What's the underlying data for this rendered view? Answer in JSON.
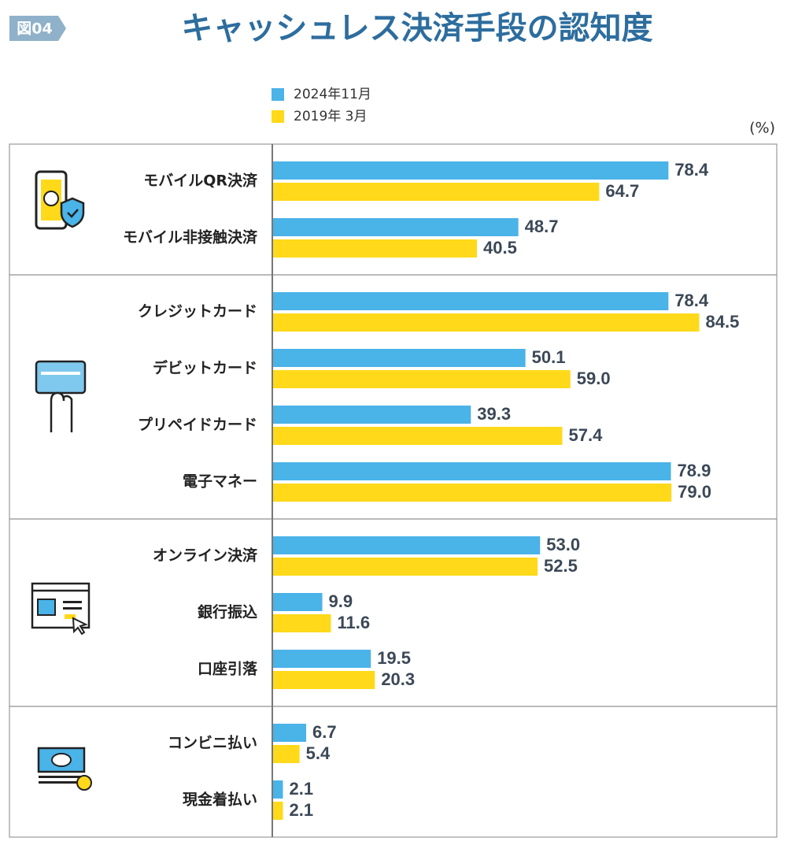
{
  "chart_data": {
    "type": "bar",
    "orientation": "horizontal",
    "figure_label": "図04",
    "title": "キャッシュレス決済手段の認知度",
    "unit": "(%)",
    "xlim": [
      0,
      100
    ],
    "series": [
      {
        "name": "2024年11月",
        "color": "#4ab3e8"
      },
      {
        "name": "2019年 3月",
        "color": "#ffd91a"
      }
    ],
    "panels": [
      {
        "categories": [
          "モバイルQR決済",
          "モバイル非接触決済"
        ],
        "series": [
          {
            "values": [
              78.4,
              48.7
            ],
            "value_labels": [
              "78.4",
              "48.7"
            ]
          },
          {
            "values": [
              64.7,
              40.5
            ],
            "value_labels": [
              "64.7",
              "40.5"
            ]
          }
        ]
      },
      {
        "categories": [
          "クレジットカード",
          "デビットカード",
          "プリペイドカード",
          "電子マネー"
        ],
        "series": [
          {
            "values": [
              78.4,
              50.1,
              39.3,
              78.9
            ],
            "value_labels": [
              "78.4",
              "50.1",
              "39.3",
              "78.9"
            ]
          },
          {
            "values": [
              84.5,
              59.0,
              57.4,
              79.0
            ],
            "value_labels": [
              "84.5",
              "59.0",
              "57.4",
              "79.0"
            ]
          }
        ]
      },
      {
        "categories": [
          "オンライン決済",
          "銀行振込",
          "口座引落"
        ],
        "series": [
          {
            "values": [
              53.0,
              9.9,
              19.5
            ],
            "value_labels": [
              "53.0",
              "9.9",
              "19.5"
            ]
          },
          {
            "values": [
              52.5,
              11.6,
              20.3
            ],
            "value_labels": [
              "52.5",
              "11.6",
              "20.3"
            ]
          }
        ]
      },
      {
        "categories": [
          "コンビニ払い",
          "現金着払い"
        ],
        "series": [
          {
            "values": [
              6.7,
              2.1
            ],
            "value_labels": [
              "6.7",
              "2.1"
            ]
          },
          {
            "values": [
              5.4,
              2.1
            ],
            "value_labels": [
              "5.4",
              "2.1"
            ]
          }
        ]
      }
    ]
  }
}
